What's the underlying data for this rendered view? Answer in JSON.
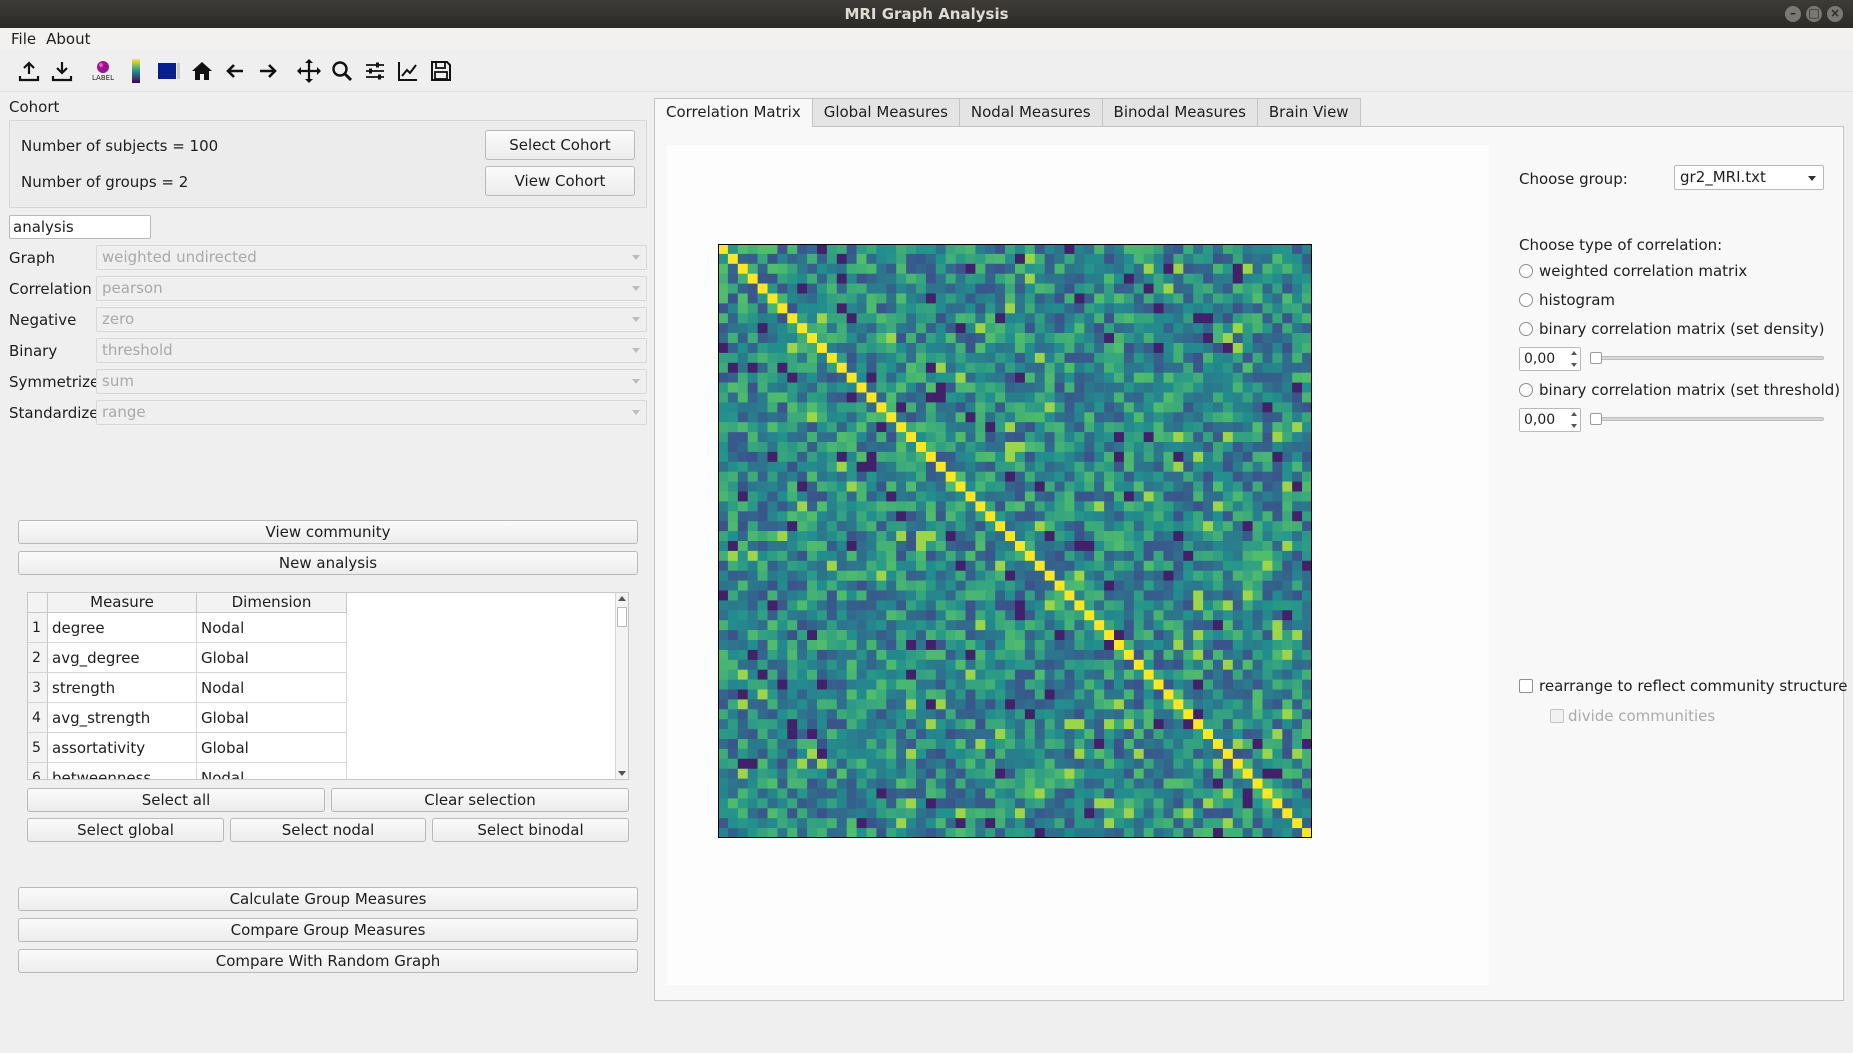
{
  "window": {
    "title": "MRI Graph Analysis"
  },
  "menu": [
    "File",
    "About"
  ],
  "toolbar": [
    "upload-icon",
    "download-icon",
    "label-icon",
    "colorbar-icon",
    "colormap-icon",
    "home-icon",
    "back-arrow-icon",
    "forward-arrow-icon",
    "pan-icon",
    "zoom-icon",
    "configure-icon",
    "edit-axis-icon",
    "save-icon"
  ],
  "toolbar_label_text": "LABEL",
  "cohort": {
    "label": "Cohort",
    "subjects_text": "Number of subjects = 100",
    "groups_text": "Number of groups = 2",
    "select_button": "Select Cohort",
    "view_button": "View Cohort"
  },
  "analysis_name": "analysis",
  "settings": [
    {
      "label": "Graph",
      "value": "weighted undirected"
    },
    {
      "label": "Correlation",
      "value": "pearson"
    },
    {
      "label": "Negative",
      "value": "zero"
    },
    {
      "label": "Binary",
      "value": "threshold"
    },
    {
      "label": "Symmetrize",
      "value": "sum"
    },
    {
      "label": "Standardize",
      "value": "range"
    }
  ],
  "buttons": {
    "view_community": "View community",
    "new_analysis": "New analysis",
    "select_all": "Select all",
    "clear_selection": "Clear selection",
    "select_global": "Select global",
    "select_nodal": "Select nodal",
    "select_binodal": "Select binodal",
    "calculate": "Calculate Group Measures",
    "compare": "Compare Group Measures",
    "compare_random": "Compare With Random Graph"
  },
  "measures_table": {
    "headers": [
      "Measure",
      "Dimension"
    ],
    "rows": [
      {
        "num": "1",
        "measure": "degree",
        "dimension": "Nodal"
      },
      {
        "num": "2",
        "measure": "avg_degree",
        "dimension": "Global"
      },
      {
        "num": "3",
        "measure": "strength",
        "dimension": "Nodal"
      },
      {
        "num": "4",
        "measure": "avg_strength",
        "dimension": "Global"
      },
      {
        "num": "5",
        "measure": "assortativity",
        "dimension": "Global"
      },
      {
        "num": "6",
        "measure": "betweenness",
        "dimension": "Nodal"
      }
    ]
  },
  "tabs": [
    "Correlation Matrix",
    "Global Measures",
    "Nodal Measures",
    "Binodal Measures",
    "Brain View"
  ],
  "active_tab": "Correlation Matrix",
  "right_panel": {
    "choose_group_label": "Choose group:",
    "group_value": "gr2_MRI.txt",
    "corr_type_label": "Choose type of correlation:",
    "options": [
      "weighted correlation matrix",
      "histogram",
      "binary correlation matrix (set density)",
      "binary correlation matrix (set threshold)"
    ],
    "density_value": "0,00",
    "threshold_value": "0,00",
    "rearrange_label": "rearrange to reflect community structure",
    "divide_label": "divide communities"
  },
  "chart_data": {
    "type": "heatmap",
    "size": 60,
    "seed": 7,
    "diagonal": 1.0,
    "colormap": "viridis",
    "value_range": [
      0,
      1
    ]
  },
  "colors": {
    "viridis": [
      "#440154",
      "#3b528b",
      "#21908d",
      "#5dc963",
      "#fde725"
    ]
  }
}
